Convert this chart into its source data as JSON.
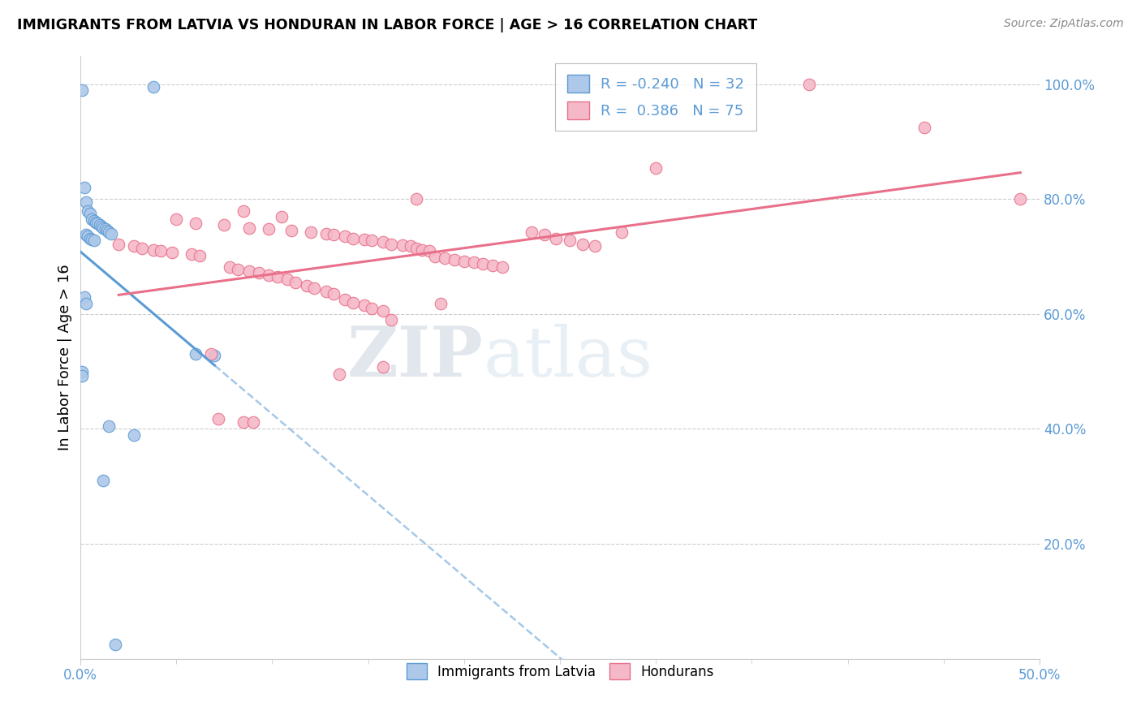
{
  "title": "IMMIGRANTS FROM LATVIA VS HONDURAN IN LABOR FORCE | AGE > 16 CORRELATION CHART",
  "source": "Source: ZipAtlas.com",
  "ylabel": "In Labor Force | Age > 16",
  "legend_blue_R": "R = -0.240",
  "legend_blue_N": "N = 32",
  "legend_pink_R": "R =  0.386",
  "legend_pink_N": "N = 75",
  "legend_label_blue": "Immigrants from Latvia",
  "legend_label_pink": "Hondurans",
  "blue_color": "#adc8e8",
  "pink_color": "#f5b8c8",
  "blue_line_color": "#5b9bd5",
  "pink_line_color": "#e8708a",
  "blue_scatter": [
    [
      0.001,
      0.99
    ],
    [
      0.038,
      0.995
    ],
    [
      0.002,
      0.82
    ],
    [
      0.003,
      0.795
    ],
    [
      0.004,
      0.78
    ],
    [
      0.005,
      0.775
    ],
    [
      0.006,
      0.765
    ],
    [
      0.007,
      0.762
    ],
    [
      0.008,
      0.76
    ],
    [
      0.009,
      0.758
    ],
    [
      0.01,
      0.755
    ],
    [
      0.011,
      0.752
    ],
    [
      0.012,
      0.75
    ],
    [
      0.013,
      0.748
    ],
    [
      0.014,
      0.745
    ],
    [
      0.015,
      0.742
    ],
    [
      0.016,
      0.74
    ],
    [
      0.003,
      0.738
    ],
    [
      0.004,
      0.735
    ],
    [
      0.005,
      0.732
    ],
    [
      0.006,
      0.73
    ],
    [
      0.007,
      0.728
    ],
    [
      0.002,
      0.63
    ],
    [
      0.003,
      0.618
    ],
    [
      0.001,
      0.5
    ],
    [
      0.001,
      0.492
    ],
    [
      0.06,
      0.53
    ],
    [
      0.07,
      0.528
    ],
    [
      0.015,
      0.405
    ],
    [
      0.028,
      0.39
    ],
    [
      0.012,
      0.31
    ],
    [
      0.018,
      0.025
    ]
  ],
  "pink_scatter": [
    [
      0.38,
      1.0
    ],
    [
      0.44,
      0.925
    ],
    [
      0.3,
      0.855
    ],
    [
      0.175,
      0.8
    ],
    [
      0.085,
      0.78
    ],
    [
      0.105,
      0.77
    ],
    [
      0.05,
      0.765
    ],
    [
      0.06,
      0.758
    ],
    [
      0.075,
      0.755
    ],
    [
      0.088,
      0.75
    ],
    [
      0.098,
      0.748
    ],
    [
      0.11,
      0.745
    ],
    [
      0.12,
      0.742
    ],
    [
      0.128,
      0.74
    ],
    [
      0.132,
      0.738
    ],
    [
      0.138,
      0.735
    ],
    [
      0.142,
      0.732
    ],
    [
      0.148,
      0.73
    ],
    [
      0.152,
      0.728
    ],
    [
      0.158,
      0.725
    ],
    [
      0.162,
      0.722
    ],
    [
      0.168,
      0.72
    ],
    [
      0.172,
      0.718
    ],
    [
      0.175,
      0.715
    ],
    [
      0.178,
      0.712
    ],
    [
      0.182,
      0.71
    ],
    [
      0.02,
      0.722
    ],
    [
      0.028,
      0.718
    ],
    [
      0.032,
      0.715
    ],
    [
      0.038,
      0.712
    ],
    [
      0.042,
      0.71
    ],
    [
      0.048,
      0.708
    ],
    [
      0.058,
      0.705
    ],
    [
      0.062,
      0.702
    ],
    [
      0.185,
      0.7
    ],
    [
      0.19,
      0.698
    ],
    [
      0.195,
      0.695
    ],
    [
      0.2,
      0.692
    ],
    [
      0.205,
      0.69
    ],
    [
      0.21,
      0.688
    ],
    [
      0.215,
      0.685
    ],
    [
      0.22,
      0.682
    ],
    [
      0.078,
      0.682
    ],
    [
      0.082,
      0.678
    ],
    [
      0.088,
      0.675
    ],
    [
      0.093,
      0.672
    ],
    [
      0.098,
      0.668
    ],
    [
      0.103,
      0.665
    ],
    [
      0.108,
      0.66
    ],
    [
      0.112,
      0.655
    ],
    [
      0.118,
      0.65
    ],
    [
      0.122,
      0.645
    ],
    [
      0.128,
      0.64
    ],
    [
      0.132,
      0.635
    ],
    [
      0.138,
      0.625
    ],
    [
      0.142,
      0.62
    ],
    [
      0.148,
      0.615
    ],
    [
      0.152,
      0.61
    ],
    [
      0.158,
      0.605
    ],
    [
      0.162,
      0.59
    ],
    [
      0.235,
      0.742
    ],
    [
      0.242,
      0.738
    ],
    [
      0.248,
      0.732
    ],
    [
      0.255,
      0.728
    ],
    [
      0.262,
      0.722
    ],
    [
      0.268,
      0.718
    ],
    [
      0.068,
      0.53
    ],
    [
      0.158,
      0.508
    ],
    [
      0.282,
      0.742
    ],
    [
      0.072,
      0.418
    ],
    [
      0.085,
      0.412
    ],
    [
      0.09,
      0.412
    ],
    [
      0.135,
      0.495
    ],
    [
      0.188,
      0.618
    ],
    [
      0.49,
      0.8
    ]
  ],
  "xmin": 0.0,
  "xmax": 0.5,
  "ymin": 0.0,
  "ymax": 1.05,
  "watermark_zip": "ZIP",
  "watermark_atlas": "atlas",
  "background_color": "#ffffff",
  "grid_color": "#cccccc",
  "ytick_vals": [
    0.0,
    0.2,
    0.4,
    0.6,
    0.8,
    1.0
  ],
  "ytick_labels": [
    "",
    "20.0%",
    "40.0%",
    "60.0%",
    "80.0%",
    "100.0%"
  ]
}
